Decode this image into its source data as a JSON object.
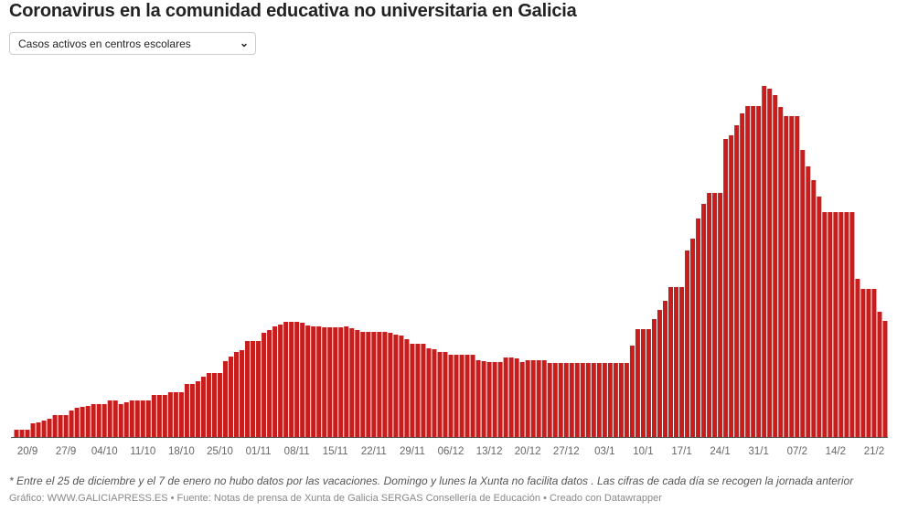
{
  "title": "Coronavirus en la comunidad educativa no universitaria en Galicia",
  "dropdown": {
    "selected": "Casos activos en centros escolares"
  },
  "footer": {
    "note": "* Entre el 25 de diciembre y el 7 de enero no hubo datos por las vacaciones. Domingo y lunes la Xunta no facilita datos . Las cifras de cada día se recogen la jornada anterior",
    "credit": "Gráfico: WWW.GALICIAPRESS.ES • Fuente: Notas de prensa de Xunta de Galicia SERGAS Consellería de Educación • Creado con Datawrapper"
  },
  "chart_data": {
    "type": "bar",
    "title": "",
    "xlabel": "",
    "ylabel": "",
    "ylim": [
      0,
      400
    ],
    "grid": false,
    "bar_color": "#c71e1d",
    "x_ticks": [
      "20/9",
      "27/9",
      "04/10",
      "11/10",
      "18/10",
      "25/10",
      "01/11",
      "08/11",
      "15/11",
      "22/11",
      "29/11",
      "06/12",
      "13/12",
      "20/12",
      "27/12",
      "03/1",
      "10/1",
      "17/1",
      "24/1",
      "31/1",
      "07/2",
      "14/2",
      "21/2"
    ],
    "categories": [
      "18/9",
      "19/9",
      "20/9",
      "21/9",
      "22/9",
      "23/9",
      "24/9",
      "25/9",
      "26/9",
      "27/9",
      "28/9",
      "29/9",
      "30/9",
      "01/10",
      "02/10",
      "03/10",
      "04/10",
      "05/10",
      "06/10",
      "07/10",
      "08/10",
      "09/10",
      "10/10",
      "11/10",
      "12/10",
      "13/10",
      "14/10",
      "15/10",
      "16/10",
      "17/10",
      "18/10",
      "19/10",
      "20/10",
      "21/10",
      "22/10",
      "23/10",
      "24/10",
      "25/10",
      "26/10",
      "27/10",
      "28/10",
      "29/10",
      "30/10",
      "31/10",
      "01/11",
      "02/11",
      "03/11",
      "04/11",
      "05/11",
      "06/11",
      "07/11",
      "08/11",
      "09/11",
      "10/11",
      "11/11",
      "12/11",
      "13/11",
      "14/11",
      "15/11",
      "16/11",
      "17/11",
      "18/11",
      "19/11",
      "20/11",
      "21/11",
      "22/11",
      "23/11",
      "24/11",
      "25/11",
      "26/11",
      "27/11",
      "28/11",
      "29/11",
      "30/11",
      "01/12",
      "02/12",
      "03/12",
      "04/12",
      "05/12",
      "06/12",
      "07/12",
      "08/12",
      "09/12",
      "10/12",
      "11/12",
      "12/12",
      "13/12",
      "14/12",
      "15/12",
      "16/12",
      "17/12",
      "18/12",
      "19/12",
      "20/12",
      "21/12",
      "22/12",
      "23/12",
      "24/12",
      "25/12",
      "26/12",
      "27/12",
      "28/12",
      "29/12",
      "30/12",
      "31/12",
      "01/1",
      "02/1",
      "03/1",
      "04/1",
      "05/1",
      "06/1",
      "07/1",
      "08/1",
      "09/1",
      "10/1",
      "11/1",
      "12/1",
      "13/1",
      "14/1",
      "15/1",
      "16/1",
      "17/1",
      "18/1",
      "19/1",
      "20/1",
      "21/1",
      "22/1",
      "23/1",
      "24/1",
      "25/1",
      "26/1",
      "27/1",
      "28/1",
      "29/1",
      "30/1",
      "31/1",
      "01/2",
      "02/2",
      "03/2",
      "04/2",
      "05/2",
      "06/2",
      "07/2",
      "08/2",
      "09/2",
      "10/2",
      "11/2",
      "12/2",
      "13/2",
      "14/2",
      "15/2",
      "16/2",
      "17/2",
      "18/2",
      "19/2",
      "20/2",
      "21/2",
      "22/2",
      "23/2"
    ],
    "values": [
      8,
      8,
      8,
      15,
      16,
      18,
      20,
      24,
      24,
      24,
      29,
      32,
      33,
      34,
      36,
      36,
      36,
      40,
      40,
      36,
      38,
      40,
      40,
      40,
      40,
      46,
      46,
      46,
      49,
      49,
      49,
      58,
      58,
      61,
      66,
      70,
      70,
      70,
      83,
      88,
      93,
      95,
      105,
      105,
      105,
      114,
      117,
      121,
      123,
      126,
      126,
      126,
      125,
      122,
      121,
      121,
      120,
      120,
      120,
      120,
      121,
      119,
      117,
      115,
      115,
      115,
      115,
      115,
      114,
      112,
      111,
      107,
      102,
      102,
      102,
      97,
      96,
      93,
      93,
      90,
      90,
      90,
      90,
      90,
      84,
      83,
      82,
      82,
      82,
      87,
      87,
      86,
      82,
      84,
      84,
      84,
      84,
      81,
      81,
      81,
      81,
      81,
      81,
      81,
      81,
      81,
      81,
      81,
      81,
      81,
      81,
      81,
      100,
      118,
      118,
      118,
      129,
      139,
      149,
      164,
      164,
      164,
      204,
      217,
      239,
      255,
      267,
      267,
      267,
      326,
      330,
      341,
      354,
      362,
      362,
      362,
      384,
      381,
      374,
      361,
      351,
      351,
      351,
      314,
      296,
      281,
      263,
      246,
      246,
      246,
      246,
      246,
      246,
      173,
      162,
      162,
      162,
      137,
      127
    ]
  }
}
